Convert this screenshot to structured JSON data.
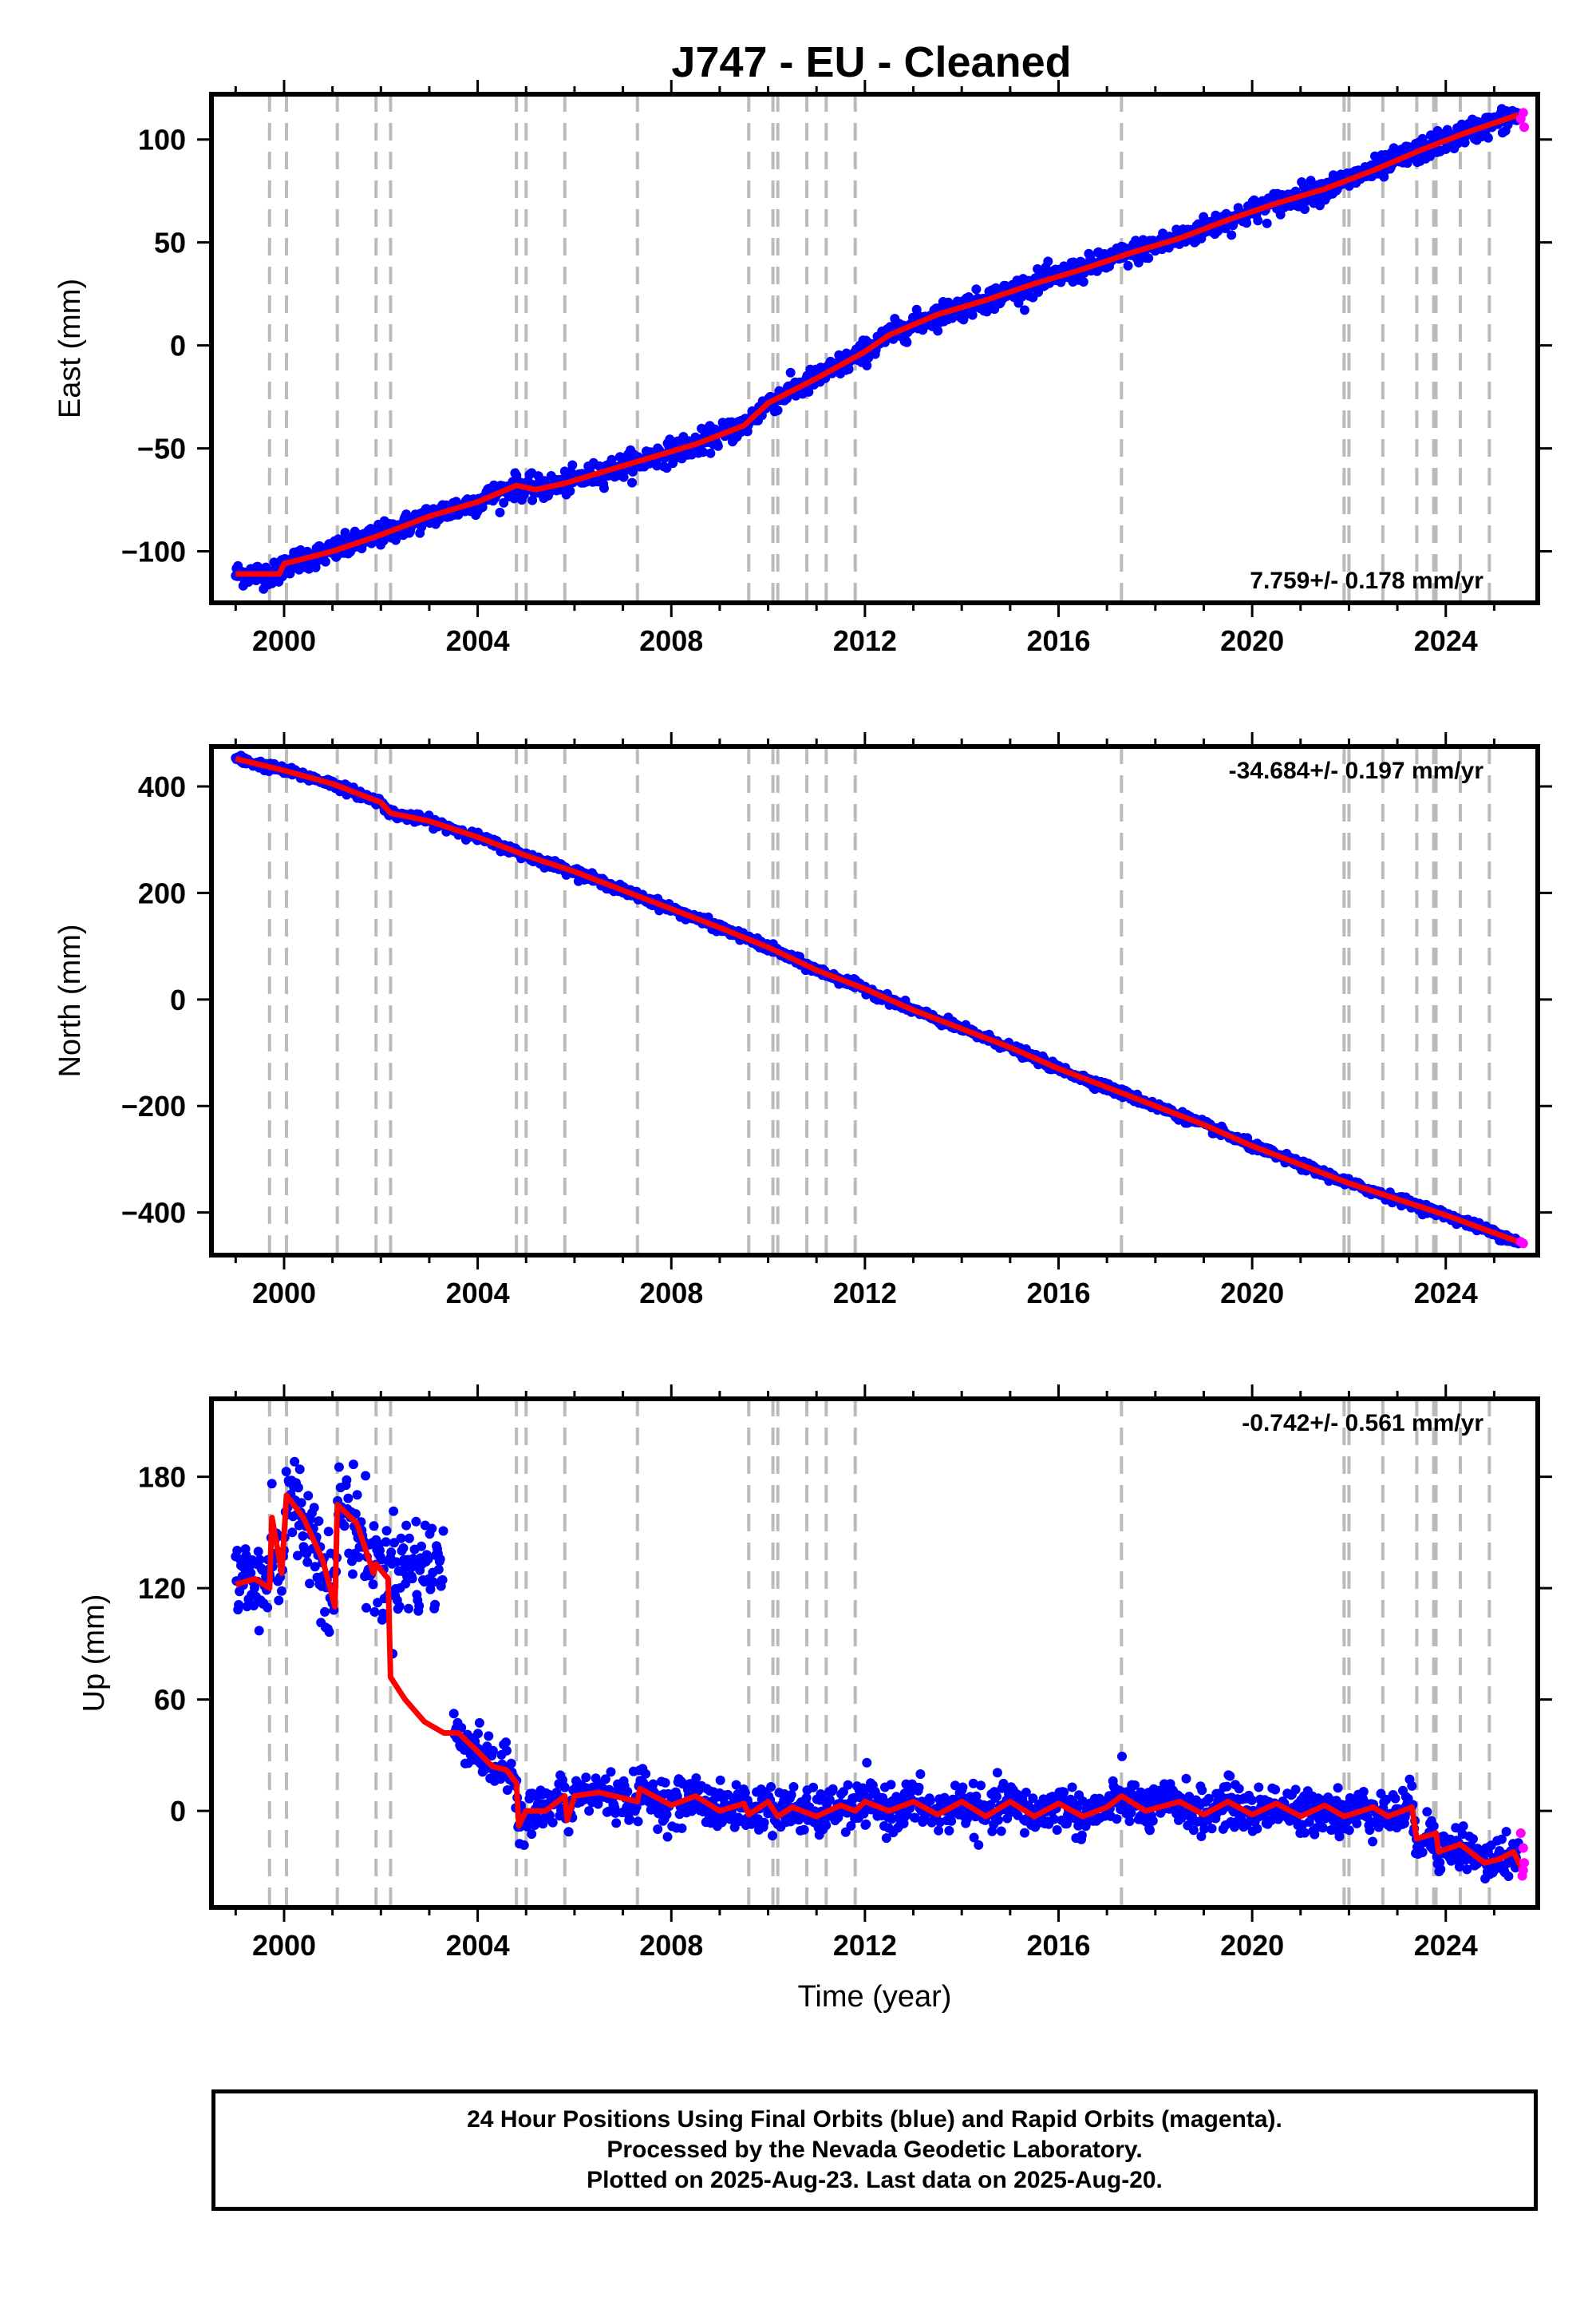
{
  "title": "J747  - EU - Cleaned",
  "colors": {
    "data": "#0000ff",
    "rapid": "#ff00ff",
    "model": "#ff0000",
    "event_lines": "#bbbbbb",
    "frame": "#000000"
  },
  "footer": {
    "line1": "24 Hour Positions Using Final Orbits (blue) and Rapid Orbits (magenta).",
    "line2": "Processed by the Nevada Geodetic Laboratory.",
    "line3": "Plotted on 2025-Aug-23. Last data on 2025-Aug-20."
  },
  "chart_data": [
    {
      "type": "scatter",
      "ylabel": "East (mm)",
      "xlabel": "",
      "rate": "7.759+/- 0.178 mm/yr",
      "rate_position": "bottom-right",
      "xlim": [
        1998.5,
        2025.9
      ],
      "ylim": [
        -125,
        122
      ],
      "yticks": [
        -100,
        -50,
        0,
        50,
        100
      ],
      "xticks": [
        2000,
        2004,
        2008,
        2012,
        2016,
        2020,
        2024
      ],
      "grid": false,
      "event_lines": [
        1999.7,
        2000.05,
        2001.1,
        2001.9,
        2002.2,
        2004.8,
        2005.0,
        2005.8,
        2007.3,
        2009.6,
        2010.1,
        2010.2,
        2010.8,
        2011.2,
        2011.8,
        2017.3,
        2021.9,
        2022.0,
        2022.7,
        2023.4,
        2023.75,
        2023.8,
        2024.3,
        2024.9
      ],
      "model_points": [
        [
          1999.0,
          -111
        ],
        [
          1999.9,
          -111
        ],
        [
          2000.0,
          -106
        ],
        [
          2001.0,
          -100
        ],
        [
          2002.0,
          -92
        ],
        [
          2003.0,
          -83
        ],
        [
          2004.0,
          -76
        ],
        [
          2004.8,
          -68
        ],
        [
          2005.2,
          -70
        ],
        [
          2005.8,
          -67
        ],
        [
          2006.5,
          -62
        ],
        [
          2007.5,
          -55
        ],
        [
          2008.5,
          -48
        ],
        [
          2009.5,
          -39
        ],
        [
          2010.0,
          -28
        ],
        [
          2011.0,
          -16
        ],
        [
          2012.0,
          -3
        ],
        [
          2012.5,
          5
        ],
        [
          2013.5,
          15
        ],
        [
          2014.5,
          22
        ],
        [
          2015.5,
          30
        ],
        [
          2016.5,
          37
        ],
        [
          2017.5,
          45
        ],
        [
          2018.5,
          52
        ],
        [
          2019.5,
          61
        ],
        [
          2020.5,
          69
        ],
        [
          2021.5,
          76
        ],
        [
          2022.5,
          85
        ],
        [
          2023.5,
          95
        ],
        [
          2024.5,
          104
        ],
        [
          2025.5,
          112
        ]
      ],
      "rapid_points": [
        [
          2025.55,
          110
        ],
        [
          2025.6,
          113
        ],
        [
          2025.62,
          106
        ]
      ]
    },
    {
      "type": "scatter",
      "ylabel": "North (mm)",
      "xlabel": "",
      "rate": "-34.684+/- 0.197 mm/yr",
      "rate_position": "top-right",
      "xlim": [
        1998.5,
        2025.9
      ],
      "ylim": [
        -480,
        475
      ],
      "yticks": [
        -400,
        -200,
        0,
        200,
        400
      ],
      "xticks": [
        2000,
        2004,
        2008,
        2012,
        2016,
        2020,
        2024
      ],
      "grid": false,
      "event_lines": [
        1999.7,
        2000.05,
        2001.1,
        2001.9,
        2002.2,
        2004.8,
        2005.0,
        2005.8,
        2007.3,
        2009.6,
        2010.1,
        2010.2,
        2010.8,
        2011.2,
        2011.8,
        2017.3,
        2021.9,
        2022.0,
        2022.7,
        2023.4,
        2023.75,
        2023.8,
        2024.3,
        2024.9
      ],
      "model_points": [
        [
          1999.0,
          452
        ],
        [
          2000.0,
          430
        ],
        [
          2001.0,
          405
        ],
        [
          2002.0,
          370
        ],
        [
          2002.2,
          350
        ],
        [
          2003.0,
          335
        ],
        [
          2004.0,
          305
        ],
        [
          2005.0,
          270
        ],
        [
          2006.0,
          240
        ],
        [
          2007.0,
          205
        ],
        [
          2008.0,
          170
        ],
        [
          2009.0,
          135
        ],
        [
          2010.0,
          98
        ],
        [
          2011.0,
          55
        ],
        [
          2012.0,
          20
        ],
        [
          2013.0,
          -20
        ],
        [
          2014.0,
          -55
        ],
        [
          2015.0,
          -90
        ],
        [
          2016.0,
          -130
        ],
        [
          2017.0,
          -165
        ],
        [
          2018.0,
          -200
        ],
        [
          2019.0,
          -235
        ],
        [
          2020.0,
          -275
        ],
        [
          2021.0,
          -310
        ],
        [
          2022.0,
          -345
        ],
        [
          2023.0,
          -375
        ],
        [
          2024.0,
          -405
        ],
        [
          2025.5,
          -455
        ]
      ],
      "rapid_points": [
        [
          2025.55,
          -455
        ],
        [
          2025.6,
          -458
        ]
      ]
    },
    {
      "type": "scatter",
      "ylabel": "Up (mm)",
      "xlabel": "Time (year)",
      "rate": "-0.742+/- 0.561 mm/yr",
      "rate_position": "top-right",
      "xlim": [
        1998.5,
        2025.9
      ],
      "ylim": [
        -52,
        222
      ],
      "yticks": [
        0,
        60,
        120,
        180
      ],
      "xticks": [
        2000,
        2004,
        2008,
        2012,
        2016,
        2020,
        2024
      ],
      "grid": false,
      "event_lines": [
        1999.7,
        2000.05,
        2001.1,
        2001.9,
        2002.2,
        2004.8,
        2005.0,
        2005.8,
        2007.3,
        2009.6,
        2010.1,
        2010.2,
        2010.8,
        2011.2,
        2011.8,
        2017.3,
        2021.9,
        2022.0,
        2022.7,
        2023.4,
        2023.75,
        2023.8,
        2024.3,
        2024.9
      ],
      "model_points": [
        [
          1999.0,
          122
        ],
        [
          1999.4,
          125
        ],
        [
          1999.7,
          120
        ],
        [
          1999.75,
          158
        ],
        [
          1999.95,
          128
        ],
        [
          2000.05,
          170
        ],
        [
          2000.4,
          158
        ],
        [
          2000.8,
          135
        ],
        [
          2001.05,
          110
        ],
        [
          2001.1,
          165
        ],
        [
          2001.5,
          155
        ],
        [
          2001.85,
          128
        ],
        [
          2001.9,
          133
        ],
        [
          2002.15,
          125
        ],
        [
          2002.2,
          72
        ],
        [
          2002.5,
          60
        ],
        [
          2002.9,
          48
        ],
        [
          2003.3,
          42
        ],
        [
          2003.6,
          42
        ],
        [
          2004.0,
          32
        ],
        [
          2004.3,
          24
        ],
        [
          2004.6,
          22
        ],
        [
          2004.8,
          15
        ],
        [
          2004.85,
          -8
        ],
        [
          2005.0,
          0
        ],
        [
          2005.4,
          0
        ],
        [
          2005.8,
          8
        ],
        [
          2005.85,
          -5
        ],
        [
          2006.0,
          8
        ],
        [
          2006.5,
          10
        ],
        [
          2007.3,
          5
        ],
        [
          2007.35,
          12
        ],
        [
          2008.0,
          3
        ],
        [
          2008.5,
          8
        ],
        [
          2009.0,
          0
        ],
        [
          2009.5,
          4
        ],
        [
          2009.6,
          -2
        ],
        [
          2010.0,
          5
        ],
        [
          2010.2,
          -3
        ],
        [
          2010.5,
          2
        ],
        [
          2011.0,
          -3
        ],
        [
          2011.5,
          3
        ],
        [
          2011.8,
          0
        ],
        [
          2012.0,
          5
        ],
        [
          2012.5,
          0
        ],
        [
          2013.0,
          5
        ],
        [
          2013.5,
          -2
        ],
        [
          2014.0,
          5
        ],
        [
          2014.5,
          -3
        ],
        [
          2015.0,
          5
        ],
        [
          2015.5,
          -3
        ],
        [
          2016.0,
          4
        ],
        [
          2016.5,
          -3
        ],
        [
          2017.0,
          2
        ],
        [
          2017.3,
          8
        ],
        [
          2017.8,
          0
        ],
        [
          2018.5,
          5
        ],
        [
          2019.0,
          -2
        ],
        [
          2019.5,
          5
        ],
        [
          2020.0,
          -2
        ],
        [
          2020.5,
          4
        ],
        [
          2021.0,
          -3
        ],
        [
          2021.5,
          3
        ],
        [
          2021.9,
          -3
        ],
        [
          2022.5,
          2
        ],
        [
          2022.8,
          -3
        ],
        [
          2023.3,
          2
        ],
        [
          2023.4,
          -15
        ],
        [
          2023.8,
          -12
        ],
        [
          2023.85,
          -22
        ],
        [
          2024.3,
          -18
        ],
        [
          2024.8,
          -28
        ],
        [
          2025.1,
          -26
        ],
        [
          2025.4,
          -22
        ],
        [
          2025.55,
          -30
        ]
      ],
      "rapid_points": [
        [
          2025.55,
          -12
        ],
        [
          2025.6,
          -20
        ],
        [
          2025.62,
          -28
        ],
        [
          2025.58,
          -35
        ],
        [
          2025.6,
          -32
        ]
      ]
    }
  ]
}
